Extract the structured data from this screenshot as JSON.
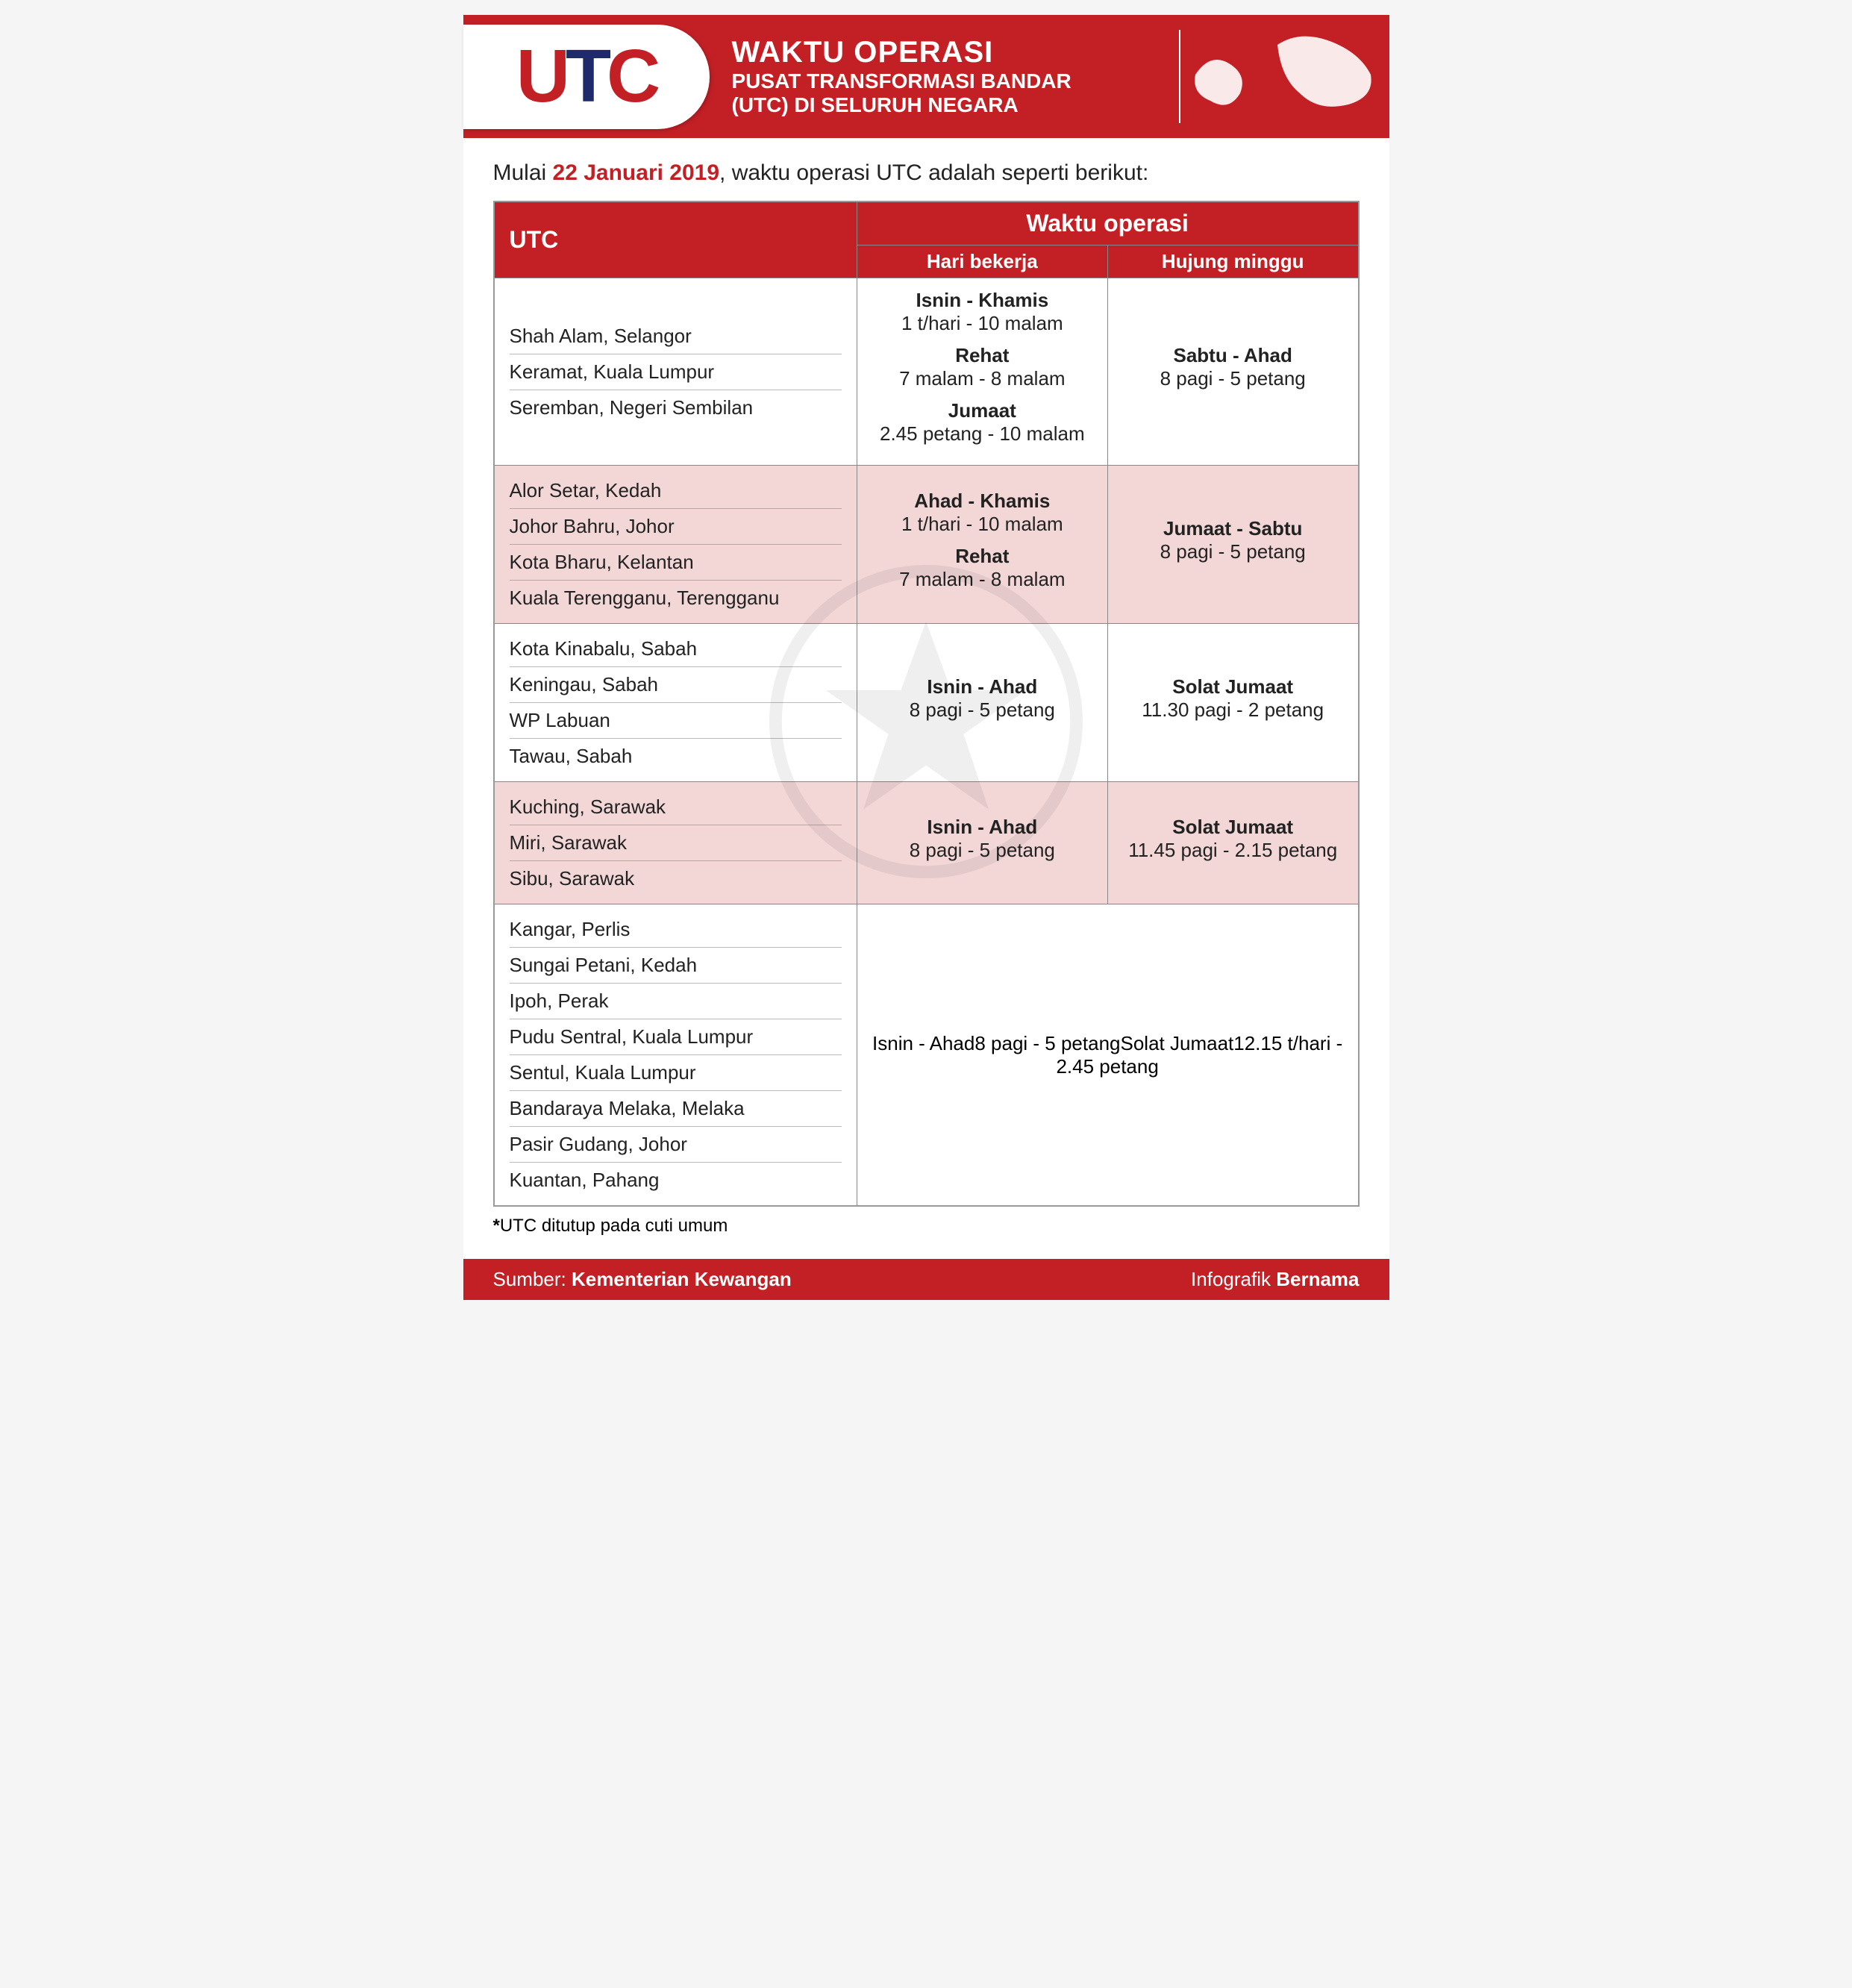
{
  "colors": {
    "brand_red": "#c32026",
    "brand_navy": "#1e2a6b",
    "pink_row": "#f3d7d7",
    "text": "#222222",
    "border": "#888888",
    "white": "#ffffff"
  },
  "logo": {
    "u": "U",
    "t": "T",
    "c": "C"
  },
  "header": {
    "title": "WAKTU OPERASI",
    "sub1": "PUSAT TRANSFORMASI BANDAR",
    "sub2": "(UTC) DI SELURUH NEGARA"
  },
  "intro": {
    "pre": "Mulai ",
    "date": "22 Januari 2019",
    "post": ", waktu operasi UTC adalah seperti berikut:"
  },
  "table": {
    "head_utc": "UTC",
    "head_op": "Waktu operasi",
    "head_work": "Hari bekerja",
    "head_weekend": "Hujung minggu",
    "groups": [
      {
        "tint": false,
        "locations": [
          "Shah Alam, Selangor",
          "Keramat, Kuala Lumpur",
          "Seremban, Negeri Sembilan"
        ],
        "work": [
          {
            "b": "Isnin - Khamis",
            "l": "1 t/hari - 10 malam"
          },
          {
            "b": "Rehat",
            "l": "7 malam - 8 malam"
          },
          {
            "b": "Jumaat",
            "l": "2.45 petang - 10 malam"
          }
        ],
        "weekend": [
          {
            "b": "Sabtu - Ahad",
            "l": "8 pagi - 5 petang"
          }
        ]
      },
      {
        "tint": true,
        "locations": [
          "Alor Setar, Kedah",
          "Johor Bahru, Johor",
          "Kota Bharu, Kelantan",
          "Kuala Terengganu, Terengganu"
        ],
        "work": [
          {
            "b": "Ahad - Khamis",
            "l": "1 t/hari - 10 malam"
          },
          {
            "b": "Rehat",
            "l": "7 malam - 8 malam"
          }
        ],
        "weekend": [
          {
            "b": "Jumaat - Sabtu",
            "l": "8 pagi - 5 petang"
          }
        ]
      },
      {
        "tint": false,
        "locations": [
          "Kota Kinabalu, Sabah",
          "Keningau, Sabah",
          "WP Labuan",
          "Tawau, Sabah"
        ],
        "work": [
          {
            "b": "Isnin - Ahad",
            "l": "8 pagi - 5 petang"
          }
        ],
        "weekend": [
          {
            "b": "Solat Jumaat",
            "l": "11.30 pagi - 2 petang"
          }
        ]
      },
      {
        "tint": true,
        "locations": [
          "Kuching, Sarawak",
          "Miri, Sarawak",
          "Sibu, Sarawak"
        ],
        "work": [
          {
            "b": "Isnin - Ahad",
            "l": "8 pagi - 5 petang"
          }
        ],
        "weekend": [
          {
            "b": "Solat Jumaat",
            "l": "11.45 pagi - 2.15 petang"
          }
        ]
      },
      {
        "tint": false,
        "merged": true,
        "locations": [
          "Kangar, Perlis",
          "Sungai Petani, Kedah",
          "Ipoh, Perak",
          "Pudu Sentral, Kuala Lumpur",
          "Sentul, Kuala Lumpur",
          "Bandaraya Melaka, Melaka",
          "Pasir Gudang, Johor",
          "Kuantan, Pahang"
        ],
        "merged_lines": [
          {
            "b": "Isnin - Ahad",
            "l": "8 pagi - 5 petang"
          },
          {
            "b": "Solat Jumaat",
            "l": "12.15 t/hari - 2.45 petang"
          }
        ]
      }
    ]
  },
  "note_star": "*",
  "note": "UTC ditutup pada cuti umum",
  "footer": {
    "source_label": "Sumber: ",
    "source": "Kementerian Kewangan",
    "info_label": "Infografik ",
    "info": "Bernama"
  }
}
